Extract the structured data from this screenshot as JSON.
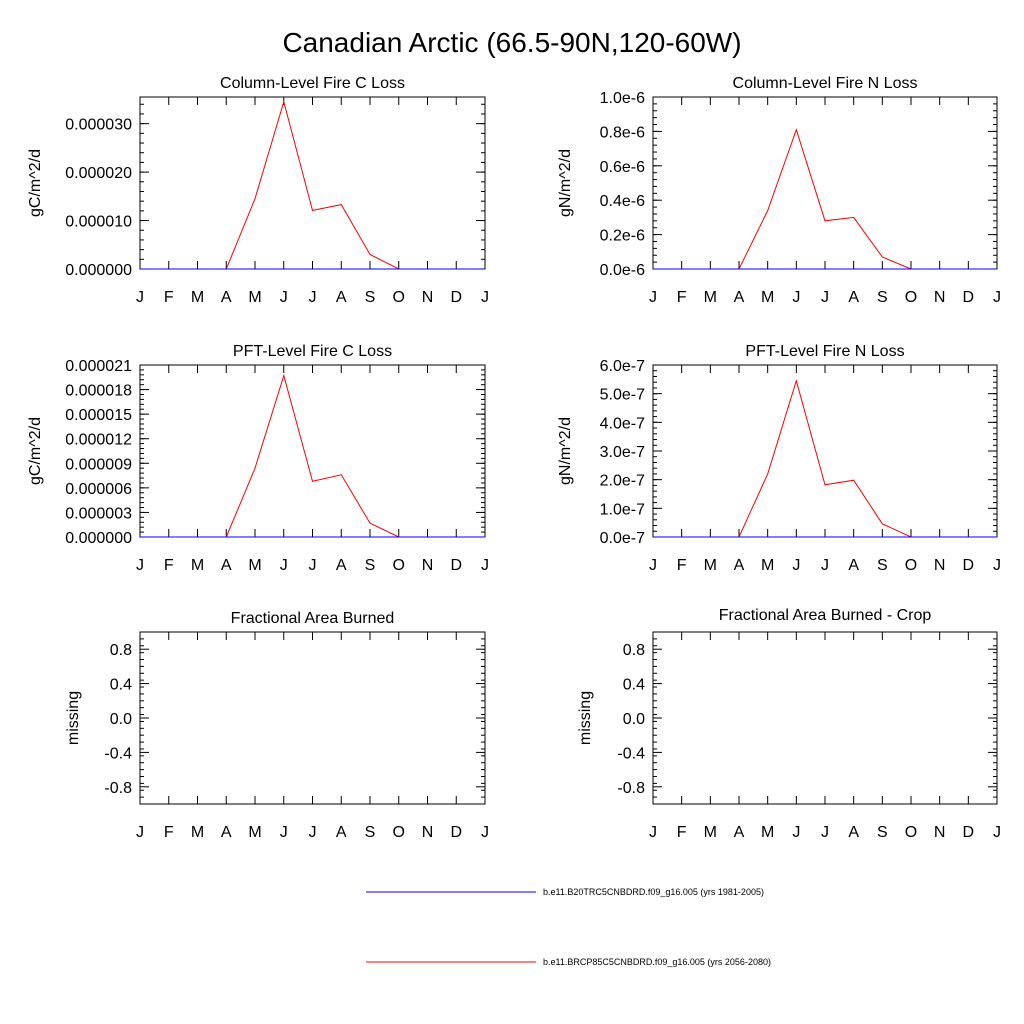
{
  "title": "Canadian Arctic (66.5-90N,120-60W)",
  "months": [
    "J",
    "F",
    "M",
    "A",
    "M",
    "J",
    "J",
    "A",
    "S",
    "O",
    "N",
    "D",
    "J"
  ],
  "colors": {
    "control": "#0000ff",
    "future": "#ff0000",
    "axis": "#000000"
  },
  "legend": [
    {
      "label": "b.e11.B20TRC5CNBDRD.f09_g16.005 (yrs 1981-2005)",
      "color": "#0000ff"
    },
    {
      "label": "b.e11.BRCP85C5CNBDRD.f09_g16.005 (yrs 2056-2080)",
      "color": "#ff0000"
    }
  ],
  "chart_data": [
    {
      "type": "line",
      "title": "Column-Level Fire C Loss",
      "ylabel": "gC/m^2/d",
      "xlabel": "",
      "ylim": [
        0,
        3.55e-05
      ],
      "yticks": [
        0,
        1e-05,
        2e-05,
        3e-05
      ],
      "ytick_labels": [
        "0.000000",
        "0.000010",
        "0.000020",
        "0.000030"
      ],
      "x": [
        "J",
        "F",
        "M",
        "A",
        "M",
        "J",
        "J",
        "A",
        "S",
        "O",
        "N",
        "D",
        "J"
      ],
      "series": [
        {
          "name": "b.e11.B20TRC5CNBDRD.f09_g16.005 (yrs 1981-2005)",
          "color": "#0000ff",
          "values": [
            0,
            0,
            0,
            0,
            0,
            0,
            0,
            0,
            0,
            0,
            0,
            0,
            0
          ]
        },
        {
          "name": "b.e11.BRCP85C5CNBDRD.f09_g16.005 (yrs 2056-2080)",
          "color": "#ff0000",
          "values": [
            0,
            0,
            0,
            0,
            1.45e-05,
            3.45e-05,
            1.21e-05,
            1.33e-05,
            3e-06,
            0,
            0,
            0,
            0
          ]
        }
      ]
    },
    {
      "type": "line",
      "title": "Column-Level Fire N Loss",
      "ylabel": "gN/m^2/d",
      "xlabel": "",
      "ylim": [
        0,
        1e-06
      ],
      "yticks": [
        0,
        2e-07,
        4e-07,
        6e-07,
        8e-07,
        1e-06
      ],
      "ytick_labels": [
        "0.0e-6",
        "0.2e-6",
        "0.4e-6",
        "0.6e-6",
        "0.8e-6",
        "1.0e-6"
      ],
      "x": [
        "J",
        "F",
        "M",
        "A",
        "M",
        "J",
        "J",
        "A",
        "S",
        "O",
        "N",
        "D",
        "J"
      ],
      "series": [
        {
          "name": "b.e11.B20TRC5CNBDRD.f09_g16.005 (yrs 1981-2005)",
          "color": "#0000ff",
          "values": [
            0,
            0,
            0,
            0,
            0,
            0,
            0,
            0,
            0,
            0,
            0,
            0,
            0
          ]
        },
        {
          "name": "b.e11.BRCP85C5CNBDRD.f09_g16.005 (yrs 2056-2080)",
          "color": "#ff0000",
          "values": [
            0,
            0,
            0,
            0,
            3.4e-07,
            8.1e-07,
            2.8e-07,
            3e-07,
            7e-08,
            0,
            0,
            0,
            0
          ]
        }
      ]
    },
    {
      "type": "line",
      "title": "PFT-Level Fire C Loss",
      "ylabel": "gC/m^2/d",
      "xlabel": "",
      "ylim": [
        0,
        2.1e-05
      ],
      "yticks": [
        0,
        3e-06,
        6e-06,
        9e-06,
        1.2e-05,
        1.5e-05,
        1.8e-05,
        2.1e-05
      ],
      "ytick_labels": [
        "0.000000",
        "0.000003",
        "0.000006",
        "0.000009",
        "0.000012",
        "0.000015",
        "0.000018",
        "0.000021"
      ],
      "x": [
        "J",
        "F",
        "M",
        "A",
        "M",
        "J",
        "J",
        "A",
        "S",
        "O",
        "N",
        "D",
        "J"
      ],
      "series": [
        {
          "name": "b.e11.B20TRC5CNBDRD.f09_g16.005 (yrs 1981-2005)",
          "color": "#0000ff",
          "values": [
            0,
            0,
            0,
            0,
            0,
            0,
            0,
            0,
            0,
            0,
            0,
            0,
            0
          ]
        },
        {
          "name": "b.e11.BRCP85C5CNBDRD.f09_g16.005 (yrs 2056-2080)",
          "color": "#ff0000",
          "values": [
            0,
            0,
            0,
            0,
            8.4e-06,
            1.97e-05,
            6.8e-06,
            7.6e-06,
            1.7e-06,
            0,
            0,
            0,
            0
          ]
        }
      ]
    },
    {
      "type": "line",
      "title": "PFT-Level Fire N Loss",
      "ylabel": "gN/m^2/d",
      "xlabel": "",
      "ylim": [
        0,
        6e-07
      ],
      "yticks": [
        0,
        1e-07,
        2e-07,
        3e-07,
        4e-07,
        5e-07,
        6e-07
      ],
      "ytick_labels": [
        "0.0e-7",
        "1.0e-7",
        "2.0e-7",
        "3.0e-7",
        "4.0e-7",
        "5.0e-7",
        "6.0e-7"
      ],
      "x": [
        "J",
        "F",
        "M",
        "A",
        "M",
        "J",
        "J",
        "A",
        "S",
        "O",
        "N",
        "D",
        "J"
      ],
      "series": [
        {
          "name": "b.e11.B20TRC5CNBDRD.f09_g16.005 (yrs 1981-2005)",
          "color": "#0000ff",
          "values": [
            0,
            0,
            0,
            0,
            0,
            0,
            0,
            0,
            0,
            0,
            0,
            0,
            0
          ]
        },
        {
          "name": "b.e11.BRCP85C5CNBDRD.f09_g16.005 (yrs 2056-2080)",
          "color": "#ff0000",
          "values": [
            0,
            0,
            0,
            0,
            2.2e-07,
            5.45e-07,
            1.82e-07,
            1.98e-07,
            4.6e-08,
            0,
            0,
            0,
            0
          ]
        }
      ]
    },
    {
      "type": "line",
      "title": "Fractional Area Burned",
      "ylabel": "missing",
      "xlabel": "",
      "ylim": [
        -1.0,
        1.0
      ],
      "yticks": [
        -0.8,
        -0.4,
        0.0,
        0.4,
        0.8
      ],
      "ytick_labels": [
        "-0.8",
        "-0.4",
        "0.0",
        "0.4",
        "0.8"
      ],
      "x": [
        "J",
        "F",
        "M",
        "A",
        "M",
        "J",
        "J",
        "A",
        "S",
        "O",
        "N",
        "D",
        "J"
      ],
      "series": []
    },
    {
      "type": "line",
      "title": "Fractional Area Burned - Crop",
      "ylabel": "missing",
      "xlabel": "",
      "ylim": [
        -1.0,
        1.0
      ],
      "yticks": [
        -0.8,
        -0.4,
        0.0,
        0.4,
        0.8
      ],
      "ytick_labels": [
        "-0.8",
        "-0.4",
        "0.0",
        "0.4",
        "0.8"
      ],
      "x": [
        "J",
        "F",
        "M",
        "A",
        "M",
        "J",
        "J",
        "A",
        "S",
        "O",
        "N",
        "D",
        "J"
      ],
      "series": []
    }
  ]
}
